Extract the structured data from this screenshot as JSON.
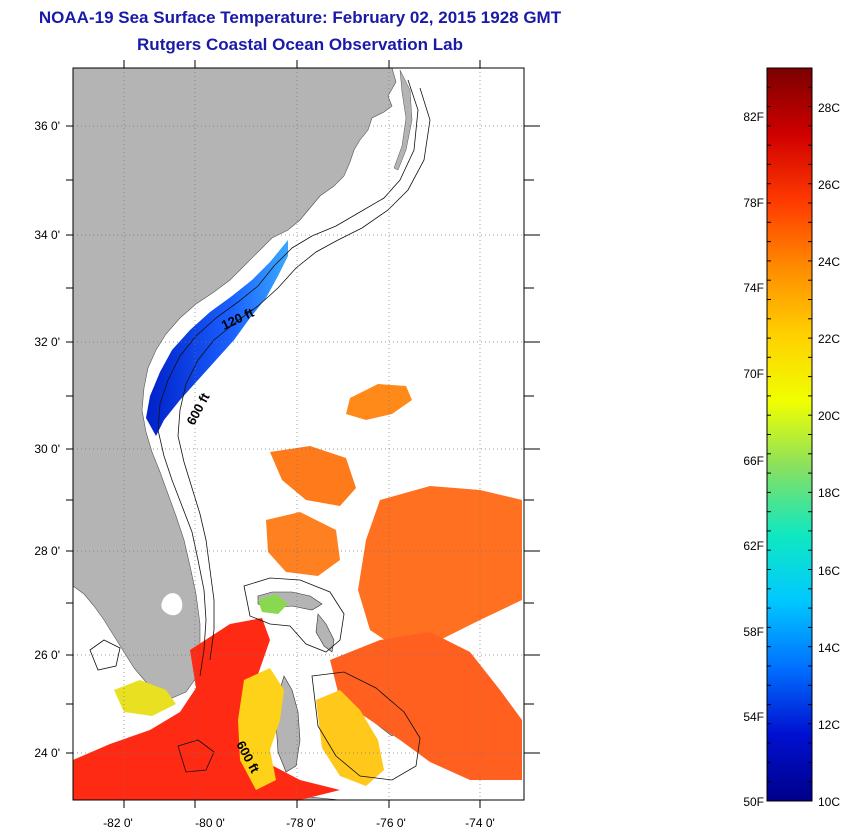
{
  "header": {
    "title": "NOAA-19 Sea Surface Temperature:  February 02, 2015 1928 GMT",
    "subtitle": "Rutgers Coastal Ocean Observation Lab"
  },
  "map": {
    "lat_labels": [
      "36 0'",
      "34 0'",
      "32 0'",
      "30 0'",
      "28 0'",
      "26 0'",
      "24 0'"
    ],
    "lon_labels": [
      "-82 0'",
      "-80 0'",
      "-78 0'",
      "-76 0'",
      "-74 0'"
    ],
    "contours": {
      "shelf_120": "120 ft",
      "shelf_600": "600 ft",
      "south_600": "600 ft"
    },
    "colors": {
      "land": "#b4b4b4",
      "ocean_no_data": "#ffffff",
      "grid": "#888888"
    }
  },
  "colorbar": {
    "f_labels": [
      "82F",
      "78F",
      "74F",
      "70F",
      "66F",
      "62F",
      "58F",
      "54F",
      "50F"
    ],
    "c_labels": [
      "28C",
      "26C",
      "24C",
      "22C",
      "20C",
      "18C",
      "16C",
      "14C",
      "12C",
      "10C"
    ],
    "range_c": [
      10,
      29
    ],
    "colors": [
      "#7a0000",
      "#d00000",
      "#ff3a00",
      "#ff8c00",
      "#ffd000",
      "#f0ff00",
      "#88e060",
      "#10e8c0",
      "#00c8ff",
      "#0070ff",
      "#0010d0",
      "#00008a"
    ]
  }
}
